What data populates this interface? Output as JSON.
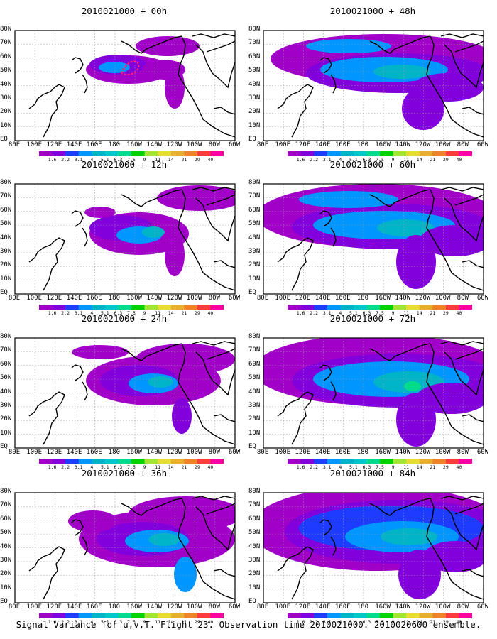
{
  "panels": [
    {
      "title": "2010021000 + 00h",
      "lead": "00h"
    },
    {
      "title": "2010021000 + 12h",
      "lead": "12h"
    },
    {
      "title": "2010021000 + 24h",
      "lead": "24h"
    },
    {
      "title": "2010021000 + 36h",
      "lead": "36h"
    },
    {
      "title": "2010021000 + 48h",
      "lead": "48h"
    },
    {
      "title": "2010021000 + 60h",
      "lead": "60h"
    },
    {
      "title": "2010021000 + 72h",
      "lead": "72h"
    },
    {
      "title": "2010021000 + 84h",
      "lead": "84h"
    }
  ],
  "lat_labels": [
    "80N",
    "70N",
    "60N",
    "50N",
    "40N",
    "30N",
    "20N",
    "10N",
    "EQ"
  ],
  "lon_labels": [
    "80E",
    "100E",
    "120E",
    "140E",
    "160E",
    "180",
    "160W",
    "140W",
    "120W",
    "100W",
    "80W",
    "60W"
  ],
  "colorbar": {
    "levels": [
      "1.6",
      "2.2",
      "3.1",
      "4",
      "5.1",
      "6.3",
      "7.5",
      "9",
      "11",
      "14",
      "21",
      "29",
      "40"
    ],
    "colors": [
      "#a000c8",
      "#8200dc",
      "#1e3cff",
      "#0096ff",
      "#00b4c8",
      "#00c8c8",
      "#00dc8c",
      "#00d200",
      "#a0e632",
      "#e6dc32",
      "#e6af2d",
      "#f08228",
      "#fa3c3c",
      "#ff00a0"
    ]
  },
  "footer": "Signal Variance for u,v,T. Flight 23. Observation time 2010021000. 2010020600 ensemble."
}
